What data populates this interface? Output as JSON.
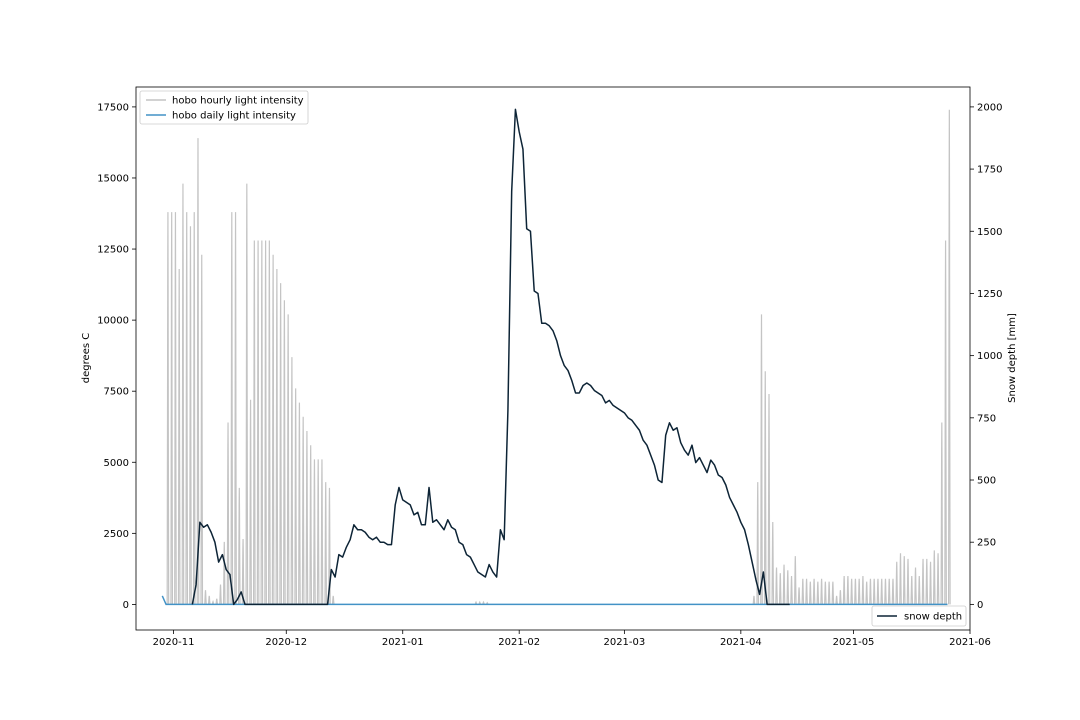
{
  "chart_data": {
    "type": "line",
    "title": "",
    "xlabel": "",
    "ylabel": "degrees C",
    "y2label": "Snow depth [mm]",
    "xlim": [
      "2020-10-22",
      "2021-06-01"
    ],
    "ylim": [
      -900,
      18200
    ],
    "y2lim": [
      -103,
      2080
    ],
    "x_ticks": [
      "2020-11",
      "2020-12",
      "2021-01",
      "2021-02",
      "2021-03",
      "2021-04",
      "2021-05",
      "2021-06"
    ],
    "y_ticks": [
      0,
      2500,
      5000,
      7500,
      10000,
      12500,
      15000,
      17500
    ],
    "y2_ticks": [
      0,
      250,
      500,
      750,
      1000,
      1250,
      1500,
      1750,
      2000
    ],
    "legend_left": {
      "placement": "upper-left",
      "entries": [
        "hobo hourly light intensity",
        "hobo daily light intensity"
      ]
    },
    "legend_right": {
      "placement": "lower-right",
      "entries": [
        "snow depth"
      ]
    },
    "colors": {
      "hourly": "#c4c4c4",
      "daily": "#4292c6",
      "snow": "#0d2436"
    },
    "series": [
      {
        "name": "hobo hourly light intensity",
        "axis": "left",
        "style": "daily-spikes",
        "peaks": [
          [
            "2020-10-30",
            13800
          ],
          [
            "2020-10-31",
            13800
          ],
          [
            "2020-11-01",
            13800
          ],
          [
            "2020-11-02",
            11800
          ],
          [
            "2020-11-03",
            14800
          ],
          [
            "2020-11-04",
            13800
          ],
          [
            "2020-11-05",
            13300
          ],
          [
            "2020-11-06",
            13800
          ],
          [
            "2020-11-07",
            16400
          ],
          [
            "2020-11-08",
            12300
          ],
          [
            "2020-11-09",
            500
          ],
          [
            "2020-11-10",
            300
          ],
          [
            "2020-11-11",
            100
          ],
          [
            "2020-11-12",
            200
          ],
          [
            "2020-11-13",
            700
          ],
          [
            "2020-11-14",
            2200
          ],
          [
            "2020-11-15",
            6400
          ],
          [
            "2020-11-16",
            13800
          ],
          [
            "2020-11-17",
            13800
          ],
          [
            "2020-11-18",
            4100
          ],
          [
            "2020-11-19",
            2300
          ],
          [
            "2020-11-20",
            14800
          ],
          [
            "2020-11-21",
            7200
          ],
          [
            "2020-11-22",
            12800
          ],
          [
            "2020-11-23",
            12800
          ],
          [
            "2020-11-24",
            12800
          ],
          [
            "2020-11-25",
            12800
          ],
          [
            "2020-11-26",
            12800
          ],
          [
            "2020-11-27",
            12300
          ],
          [
            "2020-11-28",
            11800
          ],
          [
            "2020-11-29",
            11300
          ],
          [
            "2020-11-30",
            10700
          ],
          [
            "2020-12-01",
            10200
          ],
          [
            "2020-12-02",
            8700
          ],
          [
            "2020-12-03",
            7600
          ],
          [
            "2020-12-04",
            7100
          ],
          [
            "2020-12-05",
            6600
          ],
          [
            "2020-12-06",
            6100
          ],
          [
            "2020-12-07",
            5600
          ],
          [
            "2020-12-08",
            5100
          ],
          [
            "2020-12-09",
            5100
          ],
          [
            "2020-12-10",
            5100
          ],
          [
            "2020-12-11",
            4300
          ],
          [
            "2020-12-12",
            4100
          ],
          [
            "2020-12-13",
            300
          ],
          [
            "2021-01-20",
            80
          ],
          [
            "2021-01-21",
            80
          ],
          [
            "2021-01-22",
            80
          ],
          [
            "2021-01-23",
            60
          ],
          [
            "2021-04-04",
            300
          ],
          [
            "2021-04-05",
            4300
          ],
          [
            "2021-04-06",
            10200
          ],
          [
            "2021-04-07",
            8200
          ],
          [
            "2021-04-08",
            7400
          ],
          [
            "2021-04-09",
            2900
          ],
          [
            "2021-04-10",
            1300
          ],
          [
            "2021-04-11",
            1100
          ],
          [
            "2021-04-12",
            1400
          ],
          [
            "2021-04-13",
            1200
          ],
          [
            "2021-04-14",
            1000
          ],
          [
            "2021-04-15",
            1700
          ],
          [
            "2021-04-16",
            600
          ],
          [
            "2021-04-17",
            900
          ],
          [
            "2021-04-18",
            900
          ],
          [
            "2021-04-19",
            800
          ],
          [
            "2021-04-20",
            900
          ],
          [
            "2021-04-21",
            800
          ],
          [
            "2021-04-22",
            900
          ],
          [
            "2021-04-23",
            800
          ],
          [
            "2021-04-24",
            800
          ],
          [
            "2021-04-25",
            800
          ],
          [
            "2021-04-26",
            300
          ],
          [
            "2021-04-27",
            500
          ],
          [
            "2021-04-28",
            1000
          ],
          [
            "2021-04-29",
            1000
          ],
          [
            "2021-04-30",
            900
          ],
          [
            "2021-05-01",
            900
          ],
          [
            "2021-05-02",
            900
          ],
          [
            "2021-05-03",
            1000
          ],
          [
            "2021-05-04",
            800
          ],
          [
            "2021-05-05",
            900
          ],
          [
            "2021-05-06",
            900
          ],
          [
            "2021-05-07",
            900
          ],
          [
            "2021-05-08",
            900
          ],
          [
            "2021-05-09",
            900
          ],
          [
            "2021-05-10",
            900
          ],
          [
            "2021-05-11",
            900
          ],
          [
            "2021-05-12",
            1500
          ],
          [
            "2021-05-13",
            1800
          ],
          [
            "2021-05-14",
            1700
          ],
          [
            "2021-05-15",
            1600
          ],
          [
            "2021-05-16",
            1000
          ],
          [
            "2021-05-17",
            1300
          ],
          [
            "2021-05-18",
            1000
          ],
          [
            "2021-05-19",
            1600
          ],
          [
            "2021-05-20",
            1600
          ],
          [
            "2021-05-21",
            1500
          ],
          [
            "2021-05-22",
            1900
          ],
          [
            "2021-05-23",
            1800
          ],
          [
            "2021-05-24",
            6400
          ],
          [
            "2021-05-25",
            12800
          ],
          [
            "2021-05-26",
            17400
          ]
        ]
      },
      {
        "name": "hobo daily light intensity",
        "axis": "left",
        "style": "line",
        "points": [
          [
            "2020-10-29",
            300
          ],
          [
            "2020-10-30",
            0
          ],
          [
            "2021-05-26",
            0
          ]
        ]
      },
      {
        "name": "snow depth",
        "axis": "right",
        "style": "line",
        "points": [
          [
            "2020-11-06",
            0
          ],
          [
            "2020-11-07",
            80
          ],
          [
            "2020-11-08",
            330
          ],
          [
            "2020-11-09",
            310
          ],
          [
            "2020-11-10",
            320
          ],
          [
            "2020-11-11",
            290
          ],
          [
            "2020-11-12",
            250
          ],
          [
            "2020-11-13",
            170
          ],
          [
            "2020-11-14",
            200
          ],
          [
            "2020-11-15",
            140
          ],
          [
            "2020-11-16",
            120
          ],
          [
            "2020-11-17",
            0
          ],
          [
            "2020-11-18",
            20
          ],
          [
            "2020-11-19",
            50
          ],
          [
            "2020-11-20",
            0
          ],
          [
            "2020-12-12",
            0
          ],
          [
            "2020-12-13",
            140
          ],
          [
            "2020-12-14",
            110
          ],
          [
            "2020-12-15",
            200
          ],
          [
            "2020-12-16",
            190
          ],
          [
            "2020-12-17",
            230
          ],
          [
            "2020-12-18",
            260
          ],
          [
            "2020-12-19",
            320
          ],
          [
            "2020-12-20",
            300
          ],
          [
            "2020-12-21",
            300
          ],
          [
            "2020-12-22",
            290
          ],
          [
            "2020-12-23",
            270
          ],
          [
            "2020-12-24",
            260
          ],
          [
            "2020-12-25",
            270
          ],
          [
            "2020-12-26",
            250
          ],
          [
            "2020-12-27",
            250
          ],
          [
            "2020-12-28",
            240
          ],
          [
            "2020-12-29",
            240
          ],
          [
            "2020-12-30",
            400
          ],
          [
            "2020-12-31",
            470
          ],
          [
            "2021-01-01",
            420
          ],
          [
            "2021-01-02",
            410
          ],
          [
            "2021-01-03",
            400
          ],
          [
            "2021-01-04",
            360
          ],
          [
            "2021-01-05",
            370
          ],
          [
            "2021-01-06",
            320
          ],
          [
            "2021-01-07",
            320
          ],
          [
            "2021-01-08",
            470
          ],
          [
            "2021-01-09",
            330
          ],
          [
            "2021-01-10",
            340
          ],
          [
            "2021-01-11",
            320
          ],
          [
            "2021-01-12",
            300
          ],
          [
            "2021-01-13",
            340
          ],
          [
            "2021-01-14",
            310
          ],
          [
            "2021-01-15",
            300
          ],
          [
            "2021-01-16",
            250
          ],
          [
            "2021-01-17",
            240
          ],
          [
            "2021-01-18",
            200
          ],
          [
            "2021-01-19",
            190
          ],
          [
            "2021-01-20",
            160
          ],
          [
            "2021-01-21",
            130
          ],
          [
            "2021-01-22",
            120
          ],
          [
            "2021-01-23",
            110
          ],
          [
            "2021-01-24",
            160
          ],
          [
            "2021-01-25",
            130
          ],
          [
            "2021-01-26",
            110
          ],
          [
            "2021-01-27",
            300
          ],
          [
            "2021-01-28",
            260
          ],
          [
            "2021-01-29",
            780
          ],
          [
            "2021-01-30",
            1660
          ],
          [
            "2021-01-31",
            1990
          ],
          [
            "2021-02-01",
            1900
          ],
          [
            "2021-02-02",
            1830
          ],
          [
            "2021-02-03",
            1510
          ],
          [
            "2021-02-04",
            1500
          ],
          [
            "2021-02-05",
            1260
          ],
          [
            "2021-02-06",
            1250
          ],
          [
            "2021-02-07",
            1130
          ],
          [
            "2021-02-08",
            1130
          ],
          [
            "2021-02-09",
            1120
          ],
          [
            "2021-02-10",
            1100
          ],
          [
            "2021-02-11",
            1060
          ],
          [
            "2021-02-12",
            1000
          ],
          [
            "2021-02-13",
            960
          ],
          [
            "2021-02-14",
            940
          ],
          [
            "2021-02-15",
            900
          ],
          [
            "2021-02-16",
            850
          ],
          [
            "2021-02-17",
            850
          ],
          [
            "2021-02-18",
            880
          ],
          [
            "2021-02-19",
            890
          ],
          [
            "2021-02-20",
            880
          ],
          [
            "2021-02-21",
            860
          ],
          [
            "2021-02-22",
            850
          ],
          [
            "2021-02-23",
            840
          ],
          [
            "2021-02-24",
            810
          ],
          [
            "2021-02-25",
            820
          ],
          [
            "2021-02-26",
            800
          ],
          [
            "2021-02-27",
            790
          ],
          [
            "2021-02-28",
            780
          ],
          [
            "2021-03-01",
            770
          ],
          [
            "2021-03-02",
            750
          ],
          [
            "2021-03-03",
            740
          ],
          [
            "2021-03-04",
            720
          ],
          [
            "2021-03-05",
            700
          ],
          [
            "2021-03-06",
            660
          ],
          [
            "2021-03-07",
            640
          ],
          [
            "2021-03-08",
            600
          ],
          [
            "2021-03-09",
            560
          ],
          [
            "2021-03-10",
            500
          ],
          [
            "2021-03-11",
            490
          ],
          [
            "2021-03-12",
            680
          ],
          [
            "2021-03-13",
            730
          ],
          [
            "2021-03-14",
            700
          ],
          [
            "2021-03-15",
            710
          ],
          [
            "2021-03-16",
            650
          ],
          [
            "2021-03-17",
            620
          ],
          [
            "2021-03-18",
            600
          ],
          [
            "2021-03-19",
            640
          ],
          [
            "2021-03-20",
            570
          ],
          [
            "2021-03-21",
            590
          ],
          [
            "2021-03-22",
            560
          ],
          [
            "2021-03-23",
            530
          ],
          [
            "2021-03-24",
            580
          ],
          [
            "2021-03-25",
            560
          ],
          [
            "2021-03-26",
            520
          ],
          [
            "2021-03-27",
            510
          ],
          [
            "2021-03-28",
            480
          ],
          [
            "2021-03-29",
            430
          ],
          [
            "2021-03-30",
            400
          ],
          [
            "2021-03-31",
            370
          ],
          [
            "2021-04-01",
            330
          ],
          [
            "2021-04-02",
            300
          ],
          [
            "2021-04-03",
            240
          ],
          [
            "2021-04-04",
            170
          ],
          [
            "2021-04-05",
            100
          ],
          [
            "2021-04-06",
            40
          ],
          [
            "2021-04-07",
            130
          ],
          [
            "2021-04-08",
            0
          ],
          [
            "2021-04-14",
            0
          ]
        ]
      }
    ]
  }
}
